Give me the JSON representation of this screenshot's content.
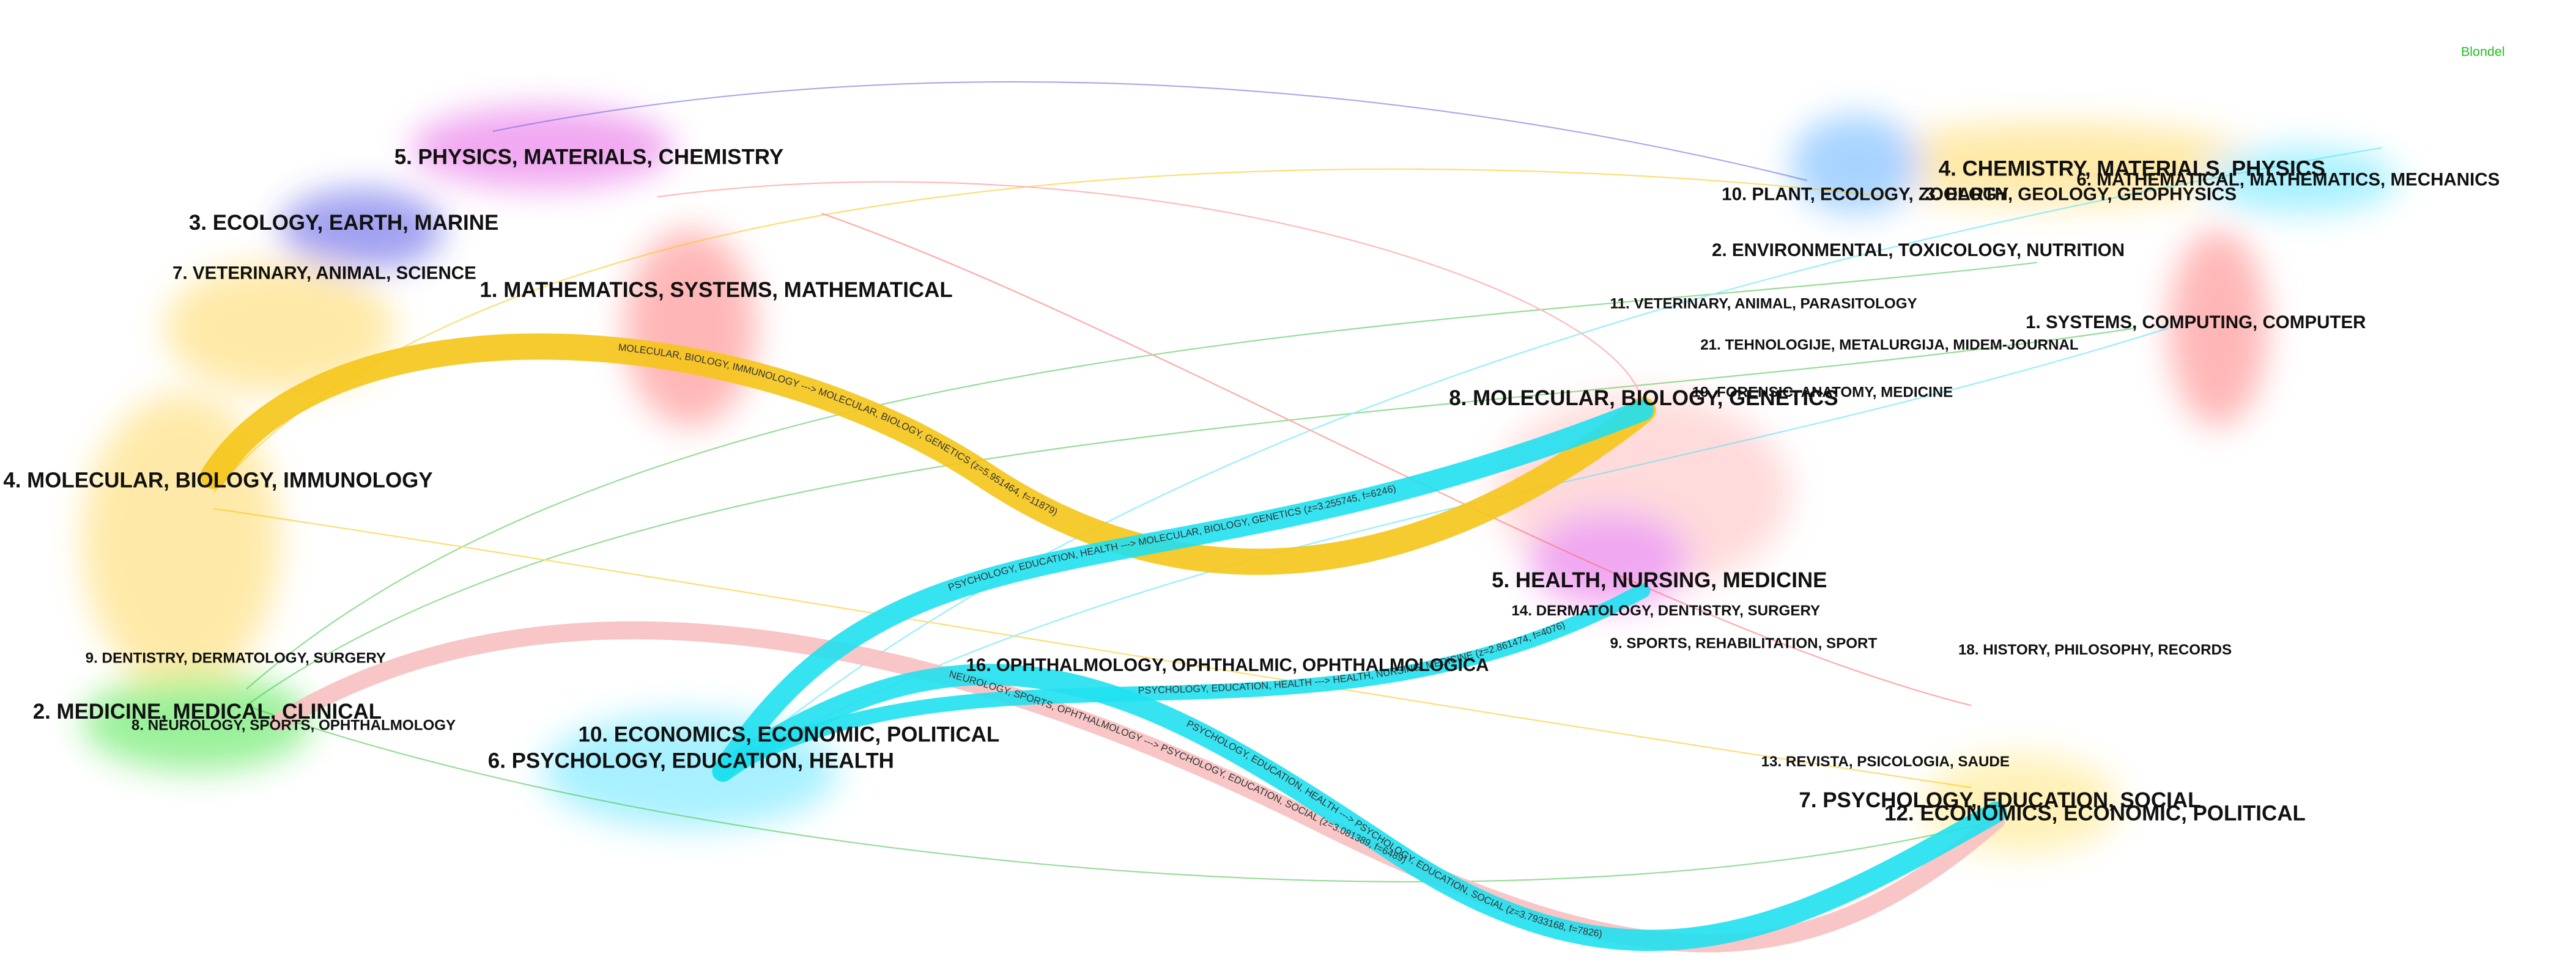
{
  "legend_label": "Blondel",
  "left_clusters": [
    "5. PHYSICS, MATERIALS, CHEMISTRY",
    "3. ECOLOGY, EARTH, MARINE",
    "7. VETERINARY, ANIMAL, SCIENCE",
    "1. MATHEMATICS, SYSTEMS, MATHEMATICAL",
    "4. MOLECULAR, BIOLOGY, IMMUNOLOGY",
    "9. DENTISTRY, DERMATOLOGY, SURGERY",
    "2. MEDICINE, MEDICAL, CLINICAL",
    "8. NEUROLOGY, SPORTS, OPHTHALMOLOGY",
    "10. ECONOMICS, ECONOMIC, POLITICAL",
    "6. PSYCHOLOGY, EDUCATION, HEALTH",
    "16. OPHTHALMOLOGY, OPHTHALMIC, OPHTHALMOLOGICA"
  ],
  "right_clusters": [
    "4. CHEMISTRY, MATERIALS, PHYSICS",
    "6. MATHEMATICAL, MATHEMATICS, MECHANICS",
    "10. PLANT, ECOLOGY, ZOOLOGY",
    "3. EARTH, GEOLOGY, GEOPHYSICS",
    "2. ENVIRONMENTAL, TOXICOLOGY, NUTRITION",
    "11. VETERINARY, ANIMAL, PARASITOLOGY",
    "1. SYSTEMS, COMPUTING, COMPUTER",
    "21. TEHNOLOGIJE, METALURGIJA, MIDEM-JOURNAL",
    "19. FORENSIC, ANATOMY, MEDICINE",
    "8. MOLECULAR, BIOLOGY, GENETICS",
    "5. HEALTH, NURSING, MEDICINE",
    "14. DERMATOLOGY, DENTISTRY, SURGERY",
    "9. SPORTS, REHABILITATION, SPORT",
    "18. HISTORY, PHILOSOPHY, RECORDS",
    "13. REVISTA, PSICOLOGIA, SAUDE",
    "7. PSYCHOLOGY, EDUCATION, SOCIAL",
    "12. ECONOMICS, ECONOMIC, POLITICAL"
  ],
  "links": [
    "MOLECULAR, BIOLOGY, IMMUNOLOGY ---> MOLECULAR, BIOLOGY, GENETICS (z=5.951464, f=11879)",
    "PSYCHOLOGY, EDUCATION, HEALTH ---> MOLECULAR, BIOLOGY, GENETICS (z=3.255745, f=6246)",
    "PSYCHOLOGY, EDUCATION, HEALTH ---> PSYCHOLOGY, EDUCATION, SOCIAL (z=3.7933168, f=7826)",
    "NEUROLOGY, SPORTS, OPHTHALMOLOGY ---> PSYCHOLOGY, EDUCATION, SOCIAL (z=3.081389, f=6489)",
    "PSYCHOLOGY, EDUCATION, HEALTH ---> HEALTH, NURSING, MEDICINE (z=2.861474, f=4076)"
  ]
}
